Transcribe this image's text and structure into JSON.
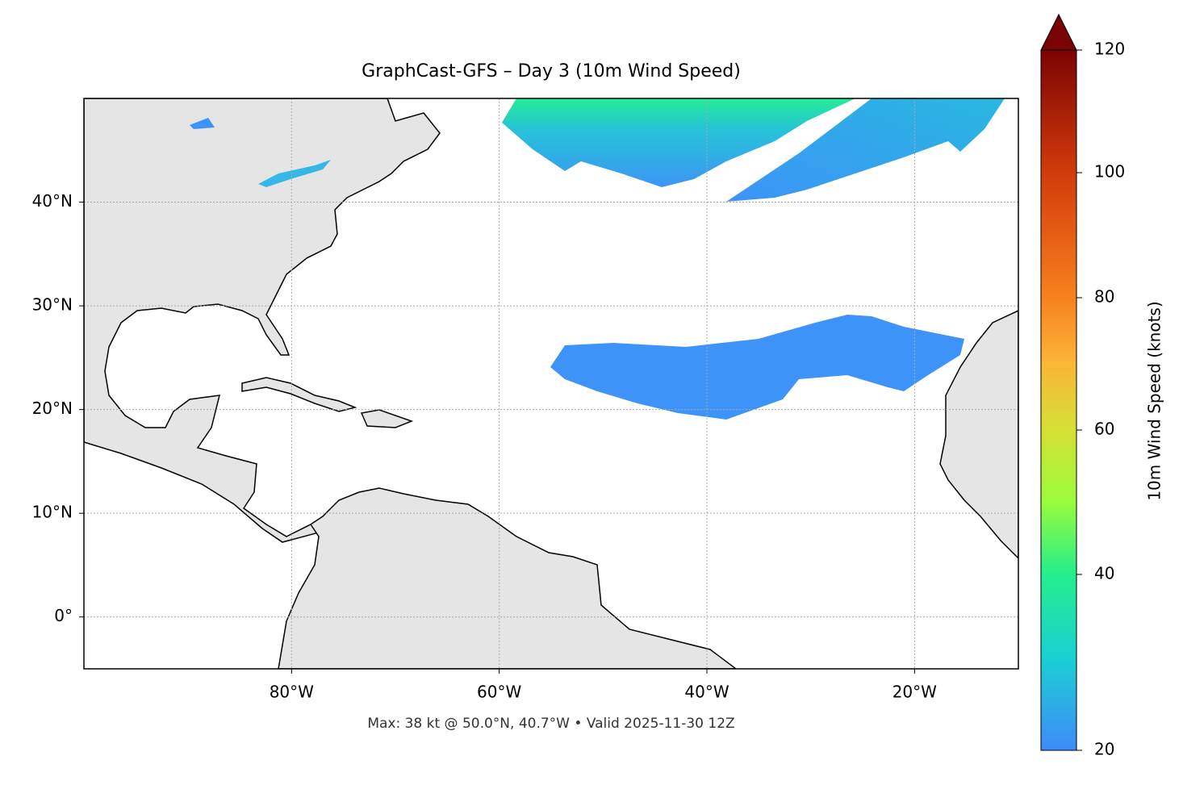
{
  "chart_data": {
    "type": "map",
    "title": "GraphCast-GFS – Day 3 (10m Wind Speed)",
    "note": "Max: 38 kt @ 50.0°N, 40.7°W • Valid 2025-11-30 12Z",
    "xlim": [
      -100,
      -10
    ],
    "ylim": [
      -5,
      50
    ],
    "xticks": [
      {
        "value": -80,
        "label": "80°W"
      },
      {
        "value": -60,
        "label": "60°W"
      },
      {
        "value": -40,
        "label": "40°W"
      },
      {
        "value": -20,
        "label": "20°W"
      }
    ],
    "yticks": [
      {
        "value": 0,
        "label": "0°"
      },
      {
        "value": 10,
        "label": "10°N"
      },
      {
        "value": 20,
        "label": "20°N"
      },
      {
        "value": 30,
        "label": "30°N"
      },
      {
        "value": 40,
        "label": "40°N"
      }
    ],
    "grid": true,
    "colorbar": {
      "label": "10m Wind Speed (knots)",
      "lim": [
        20,
        120
      ],
      "ticks": [
        20,
        40,
        60,
        80,
        100,
        120
      ],
      "extend": "max"
    }
  }
}
